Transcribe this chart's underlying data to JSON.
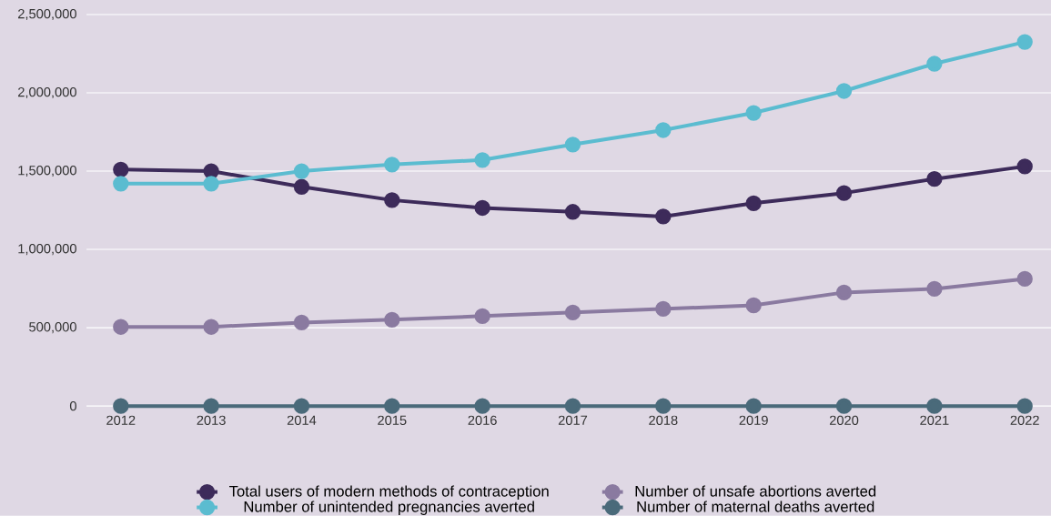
{
  "chart_data": {
    "type": "line",
    "x": [
      2012,
      2013,
      2014,
      2015,
      2016,
      2017,
      2018,
      2019,
      2020,
      2021,
      2022
    ],
    "xlim": [
      2011.62,
      2022.29
    ],
    "xticks": [
      2012,
      2013,
      2014,
      2015,
      2016,
      2017,
      2018,
      2019,
      2020,
      2021,
      2022
    ],
    "ylim": [
      0,
      2500000
    ],
    "yticks": [
      {
        "value": 0,
        "label": "0"
      },
      {
        "value": 500000,
        "label": "500,000"
      },
      {
        "value": 1000000,
        "label": "1,000,000"
      },
      {
        "value": 1500000,
        "label": "1,500,000"
      },
      {
        "value": 2000000,
        "label": "2,000,000"
      },
      {
        "value": 2500000,
        "label": "2,500,000"
      }
    ],
    "grid": "y",
    "legend": "bottom",
    "marker": "circle",
    "line_style": "solid",
    "series": [
      {
        "name": "Total users of modern methods of contraception",
        "color": "#3d2b5a",
        "values": [
          1510000,
          1500000,
          1400000,
          1315000,
          1265000,
          1240000,
          1210000,
          1295000,
          1360000,
          1450000,
          1530000
        ]
      },
      {
        "name": "Number of unsafe abortions averted",
        "color": "#8a7aa0",
        "values": [
          505000,
          505000,
          533000,
          551000,
          574000,
          597000,
          620000,
          643000,
          725000,
          748000,
          812000
        ]
      },
      {
        "name": "Number of unintended pregnancies averted",
        "color": "#5bbcd0",
        "values": [
          1420000,
          1420000,
          1500000,
          1542000,
          1571000,
          1670000,
          1762000,
          1872000,
          2012000,
          2186000,
          2325000
        ]
      },
      {
        "name": "Number of maternal deaths averted",
        "color": "#4a6a7a",
        "values": [
          0,
          0,
          0,
          0,
          0,
          0,
          0,
          0,
          0,
          0,
          0
        ]
      }
    ]
  }
}
